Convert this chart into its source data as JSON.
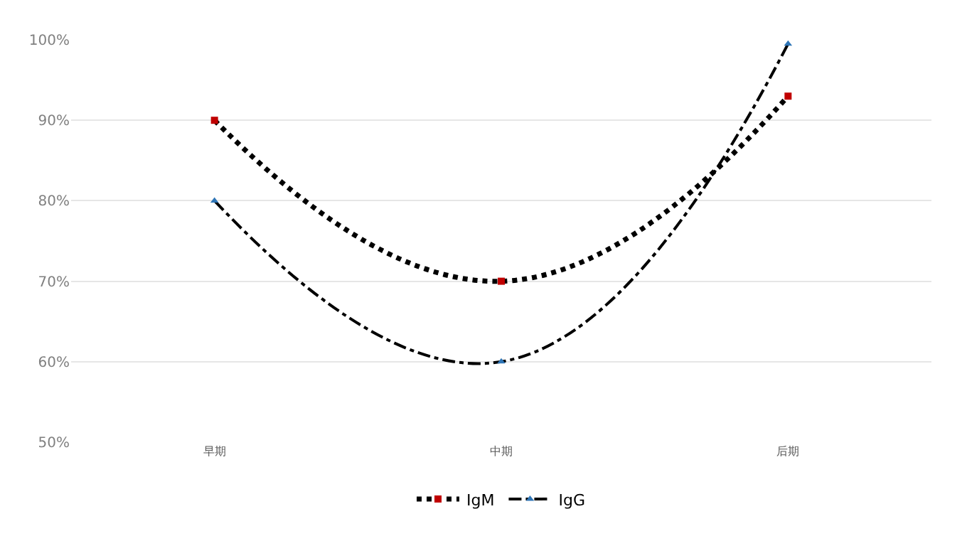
{
  "chart_data": {
    "type": "line",
    "categories": [
      "早期",
      "中期",
      "后期"
    ],
    "series": [
      {
        "name": "IgM",
        "color": "#000000",
        "colors": [
          "#c00000",
          "#c00000",
          "#c00000"
        ],
        "line_style": "dotted",
        "marker": "square",
        "values": [
          90,
          70,
          93
        ]
      },
      {
        "name": "IgG",
        "color": "#000000",
        "colors": [
          "#2e75b6",
          "#2e75b6",
          "#2e75b6"
        ],
        "line_style": "dashdot",
        "marker": "triangle",
        "values": [
          80,
          60,
          99.5
        ]
      }
    ],
    "ylim": [
      50,
      100
    ],
    "yticks": [
      {
        "value": 50,
        "label": "50%"
      },
      {
        "value": 60,
        "label": "60%"
      },
      {
        "value": 70,
        "label": "70%"
      },
      {
        "value": 80,
        "label": "80%"
      },
      {
        "value": 90,
        "label": "90%"
      },
      {
        "value": 100,
        "label": "100%"
      }
    ],
    "grid": "y",
    "legend": "bottom"
  }
}
